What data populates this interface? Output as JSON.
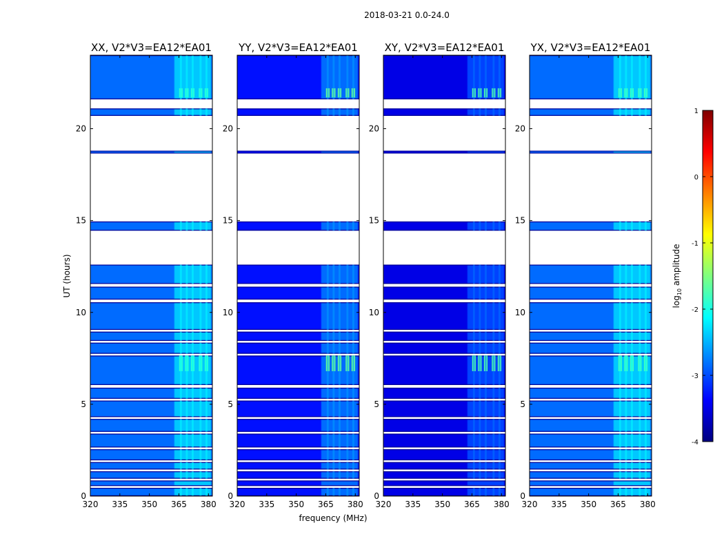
{
  "chart_data": {
    "type": "heatmap",
    "suptitle": "2018-03-21 0.0-24.0",
    "xlabel": "frequency (MHz)",
    "ylabel": "UT (hours)",
    "xlim": [
      320,
      382
    ],
    "ylim": [
      0,
      24
    ],
    "xticks": [
      320,
      335,
      350,
      365,
      380
    ],
    "yticks": [
      0,
      5,
      10,
      15,
      20
    ],
    "colorbar": {
      "label": "log10 amplitude",
      "label_main": "log",
      "label_sub": "10",
      "label_rest": " amplitude",
      "min": -4,
      "max": 1,
      "ticks": [
        -4,
        -3,
        -2,
        -1,
        0,
        1
      ],
      "colormap": "jet",
      "colors": [
        "#00007f",
        "#0000ff",
        "#007fff",
        "#00ffff",
        "#7fff7f",
        "#ffff00",
        "#ff7f00",
        "#ff0000",
        "#7f0000"
      ]
    },
    "panels": [
      {
        "title": "XX, V2*V3=EA12*EA01",
        "baseline": -2.85,
        "rfi_level": -1.9
      },
      {
        "title": "YY, V2*V3=EA12*EA01",
        "baseline": -3.3,
        "rfi_level": -1.6
      },
      {
        "title": "XY, V2*V3=EA12*EA01",
        "baseline": -3.5,
        "rfi_level": -1.7
      },
      {
        "title": "YX, V2*V3=EA12*EA01",
        "baseline": -2.85,
        "rfi_level": -1.8
      }
    ],
    "rfi_band_mhz": [
      363,
      381
    ],
    "data_intervals_ut": [
      [
        0.0,
        0.45
      ],
      [
        0.55,
        0.85
      ],
      [
        0.95,
        1.35
      ],
      [
        1.45,
        1.85
      ],
      [
        1.95,
        2.55
      ],
      [
        2.65,
        3.4
      ],
      [
        3.5,
        4.2
      ],
      [
        4.3,
        5.2
      ],
      [
        5.3,
        5.9
      ],
      [
        6.05,
        7.65
      ],
      [
        7.75,
        8.35
      ],
      [
        8.45,
        8.95
      ],
      [
        9.05,
        10.55
      ],
      [
        10.7,
        11.4
      ],
      [
        11.55,
        12.6
      ],
      [
        14.45,
        14.95
      ],
      [
        18.65,
        18.8
      ],
      [
        20.7,
        21.1
      ],
      [
        21.6,
        24.0
      ]
    ],
    "bright_rfi_intervals_ut": [
      [
        6.8,
        7.65
      ],
      [
        21.7,
        22.2
      ]
    ]
  }
}
